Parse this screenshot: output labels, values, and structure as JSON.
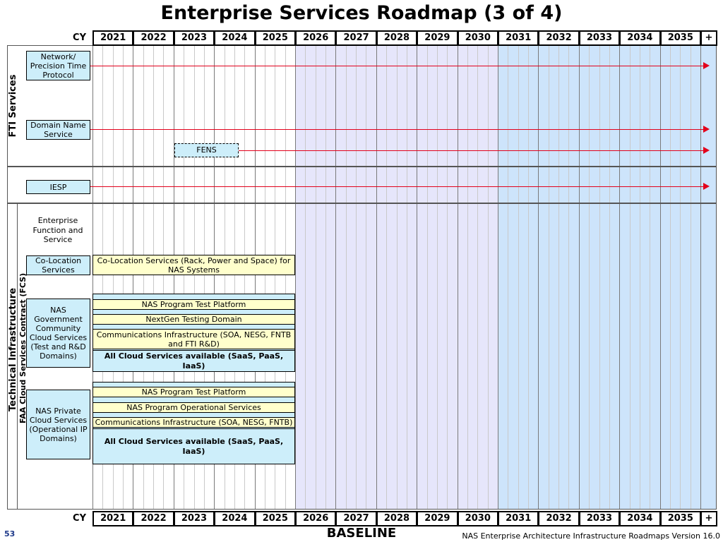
{
  "title": "Enterprise Services Roadmap (3 of 4)",
  "cy_label": "CY",
  "years": [
    "2021",
    "2022",
    "2023",
    "2024",
    "2025",
    "2026",
    "2027",
    "2028",
    "2029",
    "2030",
    "2031",
    "2032",
    "2033",
    "2034",
    "2035",
    "+"
  ],
  "colors": {
    "band_mid": "#e6e6fb",
    "band_far": "#cde4fb",
    "bar_fill": "#cdeefa",
    "bar_yellow": "#ffffcc",
    "arrow": "#e3001b"
  },
  "sections": {
    "fti": "FTI Services",
    "technical_infrastructure": "Technical Infrastructure",
    "fcs": "FAA Cloud Services Contract (FCS)"
  },
  "services": {
    "network_ptp": "Network/ Precision Time Protocol",
    "dns": "Domain Name Service",
    "fens": "FENS",
    "iesp": "IESP",
    "enterprise_function": "Enterprise Function and Service",
    "co_location": "Co-Location Services",
    "nas_gov_cloud": "NAS Government Community Cloud Services (Test and R&D Domains)",
    "nas_private_cloud": "NAS Private Cloud Services (Operational IP Domains)"
  },
  "bars": {
    "co_location": "Co-Location Services (Rack, Power and Space) for NAS Systems",
    "gov_test_platform": "NAS Program Test Platform",
    "gov_nextgen": "NextGen Testing Domain",
    "gov_comms": "Communications Infrastructure (SOA, NESG, FNTB and FTI R&D)",
    "gov_all_cloud": "All Cloud Services available (SaaS, PaaS, IaaS)",
    "priv_test_platform": "NAS Program Test Platform",
    "priv_operational": "NAS Program Operational Services",
    "priv_comms": "Communications Infrastructure (SOA, NESG, FNTB)",
    "priv_all_cloud": "All Cloud Services available (SaaS, PaaS, IaaS)"
  },
  "footer": {
    "page_number": "53",
    "baseline": "BASELINE",
    "version": "NAS Enterprise Architecture Infrastructure Roadmaps Version 16.0"
  }
}
